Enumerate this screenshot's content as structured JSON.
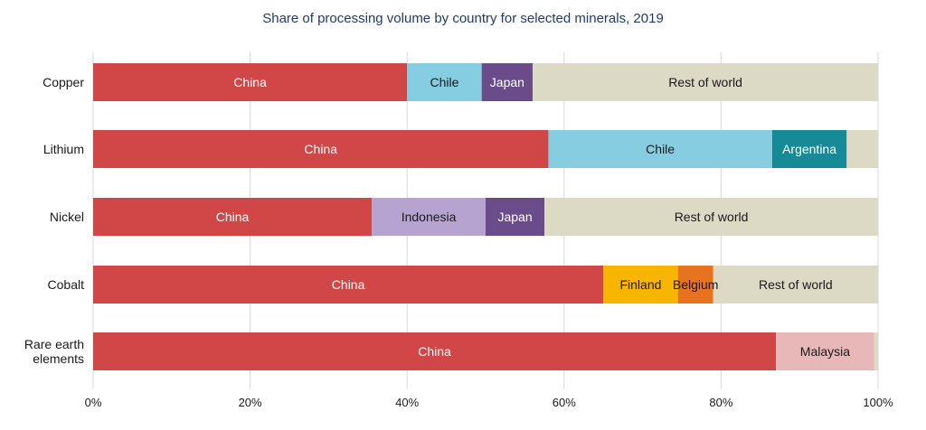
{
  "chart_data": {
    "type": "bar",
    "orientation": "horizontal",
    "stacked": true,
    "title": "Share of processing volume by country for selected minerals, 2019",
    "xlim": [
      0,
      100
    ],
    "x_ticks": [
      "0%",
      "20%",
      "40%",
      "60%",
      "80%",
      "100%"
    ],
    "x_tick_values": [
      0,
      20,
      40,
      60,
      80,
      100
    ],
    "grid": "vertical",
    "legend": "none",
    "categories": [
      [
        "Copper"
      ],
      [
        "Lithium"
      ],
      [
        "Nickel"
      ],
      [
        "Cobalt"
      ],
      [
        "Rare earth",
        "elements"
      ]
    ],
    "bars": [
      [
        {
          "label": "China",
          "value": 40,
          "color": "#d14748",
          "text_color": "#ffffff"
        },
        {
          "label": "Chile",
          "value": 9.5,
          "color": "#86cde2",
          "text_color": "#1a1a1a"
        },
        {
          "label": "Japan",
          "value": 6.5,
          "color": "#6a4c8a",
          "text_color": "#ffffff"
        },
        {
          "label": "Rest of world",
          "value": 44,
          "color": "#dcd9c5",
          "text_color": "#1a1a1a"
        }
      ],
      [
        {
          "label": "China",
          "value": 58,
          "color": "#d14748",
          "text_color": "#ffffff"
        },
        {
          "label": "Chile",
          "value": 28.5,
          "color": "#86cde2",
          "text_color": "#1a1a1a"
        },
        {
          "label": "Argentina",
          "value": 9.5,
          "color": "#168a96",
          "text_color": "#ffffff"
        },
        {
          "label": "",
          "value": 4,
          "color": "#dcd9c5",
          "text_color": "#1a1a1a"
        }
      ],
      [
        {
          "label": "China",
          "value": 35.5,
          "color": "#d14748",
          "text_color": "#ffffff"
        },
        {
          "label": "Indonesia",
          "value": 14.5,
          "color": "#b6a3cf",
          "text_color": "#1a1a1a"
        },
        {
          "label": "Japan",
          "value": 7.5,
          "color": "#6a4c8a",
          "text_color": "#ffffff"
        },
        {
          "label": "Rest of world",
          "value": 42.5,
          "color": "#dcd9c5",
          "text_color": "#1a1a1a"
        }
      ],
      [
        {
          "label": "China",
          "value": 65,
          "color": "#d14748",
          "text_color": "#ffffff"
        },
        {
          "label": "Finland",
          "value": 9.5,
          "color": "#f7b500",
          "text_color": "#1a1a1a"
        },
        {
          "label": "Belgium",
          "value": 4.5,
          "color": "#e8731f",
          "text_color": "#1a1a1a"
        },
        {
          "label": "Rest of world",
          "value": 21,
          "color": "#dcd9c5",
          "text_color": "#1a1a1a"
        }
      ],
      [
        {
          "label": "China",
          "value": 87,
          "color": "#d14748",
          "text_color": "#ffffff"
        },
        {
          "label": "Malaysia",
          "value": 12.5,
          "color": "#e8b8b9",
          "text_color": "#1a1a1a"
        },
        {
          "label": "",
          "value": 0.5,
          "color": "#dcd9c5",
          "text_color": "#1a1a1a"
        }
      ]
    ]
  }
}
